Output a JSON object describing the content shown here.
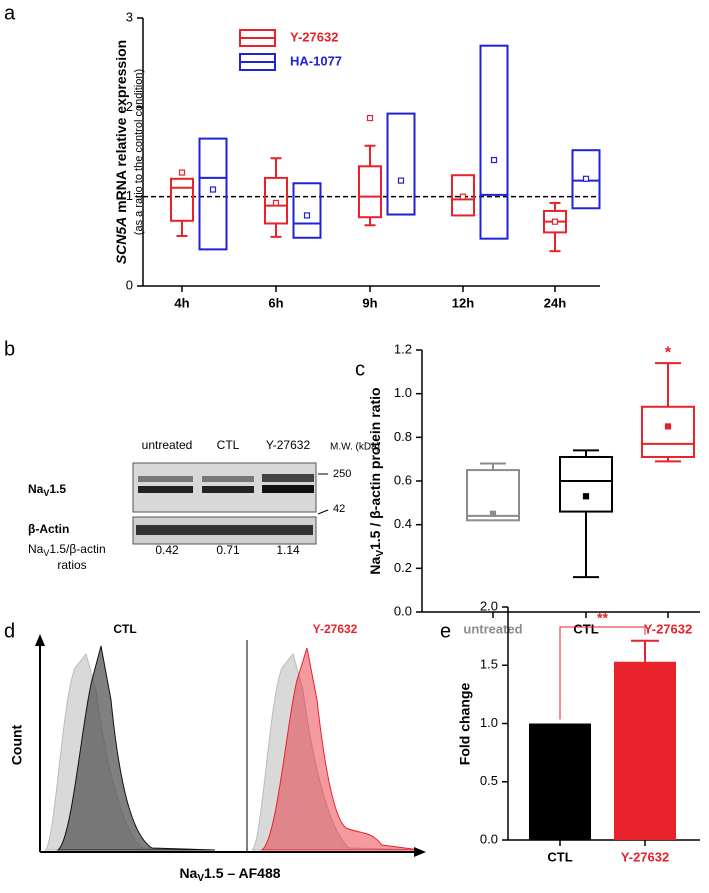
{
  "panel_labels": [
    "a",
    "b",
    "c",
    "d",
    "e"
  ],
  "chart_data": [
    {
      "type": "box",
      "y_label_parts": [
        "SCN5A",
        " mRNA relative expression"
      ],
      "y_sublabel": "(as a ratio to the control condition)",
      "categories": [
        "4h",
        "6h",
        "9h",
        "12h",
        "24h"
      ],
      "series": [
        {
          "name": "Y-27632",
          "color": "#e8212a",
          "values": [
            {
              "min": 0.56,
              "q1": 0.73,
              "median": 1.1,
              "q3": 1.2,
              "max": 1.2,
              "mean": 1.27
            },
            {
              "min": 0.55,
              "q1": 0.7,
              "median": 0.9,
              "q3": 1.21,
              "max": 1.43,
              "mean": 0.93
            },
            {
              "min": 0.68,
              "q1": 0.77,
              "median": 1.0,
              "q3": 1.34,
              "max": 1.57,
              "mean": 1.88
            },
            {
              "min": 0.79,
              "q1": 0.79,
              "median": 0.97,
              "q3": 1.24,
              "max": 1.24,
              "mean": 1.0
            },
            {
              "min": 0.39,
              "q1": 0.6,
              "median": 0.72,
              "q3": 0.84,
              "max": 0.93,
              "mean": 0.72
            }
          ]
        },
        {
          "name": "HA-1077",
          "color": "#1f22d6",
          "values": [
            {
              "q1": 0.41,
              "median": 1.21,
              "q3": 1.65,
              "mean": 1.08
            },
            {
              "q1": 0.54,
              "median": 0.7,
              "q3": 1.15,
              "mean": 0.79
            },
            {
              "q1": 0.8,
              "median": 0.8,
              "q3": 1.93,
              "mean": 1.18
            },
            {
              "q1": 0.53,
              "median": 1.02,
              "q3": 2.69,
              "mean": 1.41
            },
            {
              "q1": 0.87,
              "median": 1.18,
              "q3": 1.52,
              "mean": 1.2
            }
          ]
        }
      ],
      "ylim": [
        0,
        3
      ],
      "yticks": [
        0,
        1,
        2,
        3
      ],
      "reference_line": 1
    },
    {
      "type": "box",
      "y_label_parts": [
        "Na",
        "V",
        "1.5 / β-actin protein ratio"
      ],
      "categories": [
        "untreated",
        "CTL",
        "Y-27632"
      ],
      "colors": [
        "#8c8c8c",
        "#000000",
        "#e8212a"
      ],
      "values": [
        {
          "min": 0.42,
          "q1": 0.42,
          "median": 0.44,
          "q3": 0.65,
          "max": 0.68,
          "mean": 0.45
        },
        {
          "min": 0.16,
          "q1": 0.46,
          "median": 0.6,
          "q3": 0.71,
          "max": 0.74,
          "mean": 0.53
        },
        {
          "min": 0.69,
          "q1": 0.71,
          "median": 0.77,
          "q3": 0.94,
          "max": 1.14,
          "mean": 0.85
        }
      ],
      "annotation": "*",
      "ylim": [
        0,
        1.2
      ],
      "yticks": [
        {
          "value": 0,
          "label": "0.0"
        },
        0.2,
        0.4,
        0.6,
        0.8,
        {
          "value": 1,
          "label": "1.0"
        },
        1.2
      ]
    },
    {
      "type": "bar",
      "y_label": "Fold change",
      "categories": [
        "CTL",
        "Y-27632"
      ],
      "colors": [
        "#000000",
        "#e8212a"
      ],
      "values": [
        1.0,
        1.53
      ],
      "errors": [
        null,
        0.18
      ],
      "significance": "**",
      "ylim": [
        0,
        2
      ],
      "yticks": [
        {
          "value": 0,
          "label": "0.0"
        },
        0.5,
        {
          "value": 1,
          "label": "1.0"
        },
        1.5,
        {
          "value": 2,
          "label": "2.0"
        }
      ]
    }
  ],
  "western_blot": {
    "lanes": [
      "untreated",
      "CTL",
      "Y-27632"
    ],
    "mw_label": "M.W. (kDa)",
    "mw_markers": [
      "250",
      "42"
    ],
    "rows": [
      [
        "Na",
        "V",
        "1.5"
      ],
      "β-Actin"
    ],
    "ratio_label": [
      [
        "Na",
        "V",
        "1.5/β-actin"
      ],
      "ratios"
    ],
    "ratios": [
      "0.42",
      "0.71",
      "1.14"
    ]
  },
  "flow_cytometry": {
    "panels": [
      "CTL",
      "Y-27632"
    ],
    "y_label": "Count",
    "x_label_parts": [
      "Na",
      "V",
      "1.5 – AF488"
    ]
  }
}
